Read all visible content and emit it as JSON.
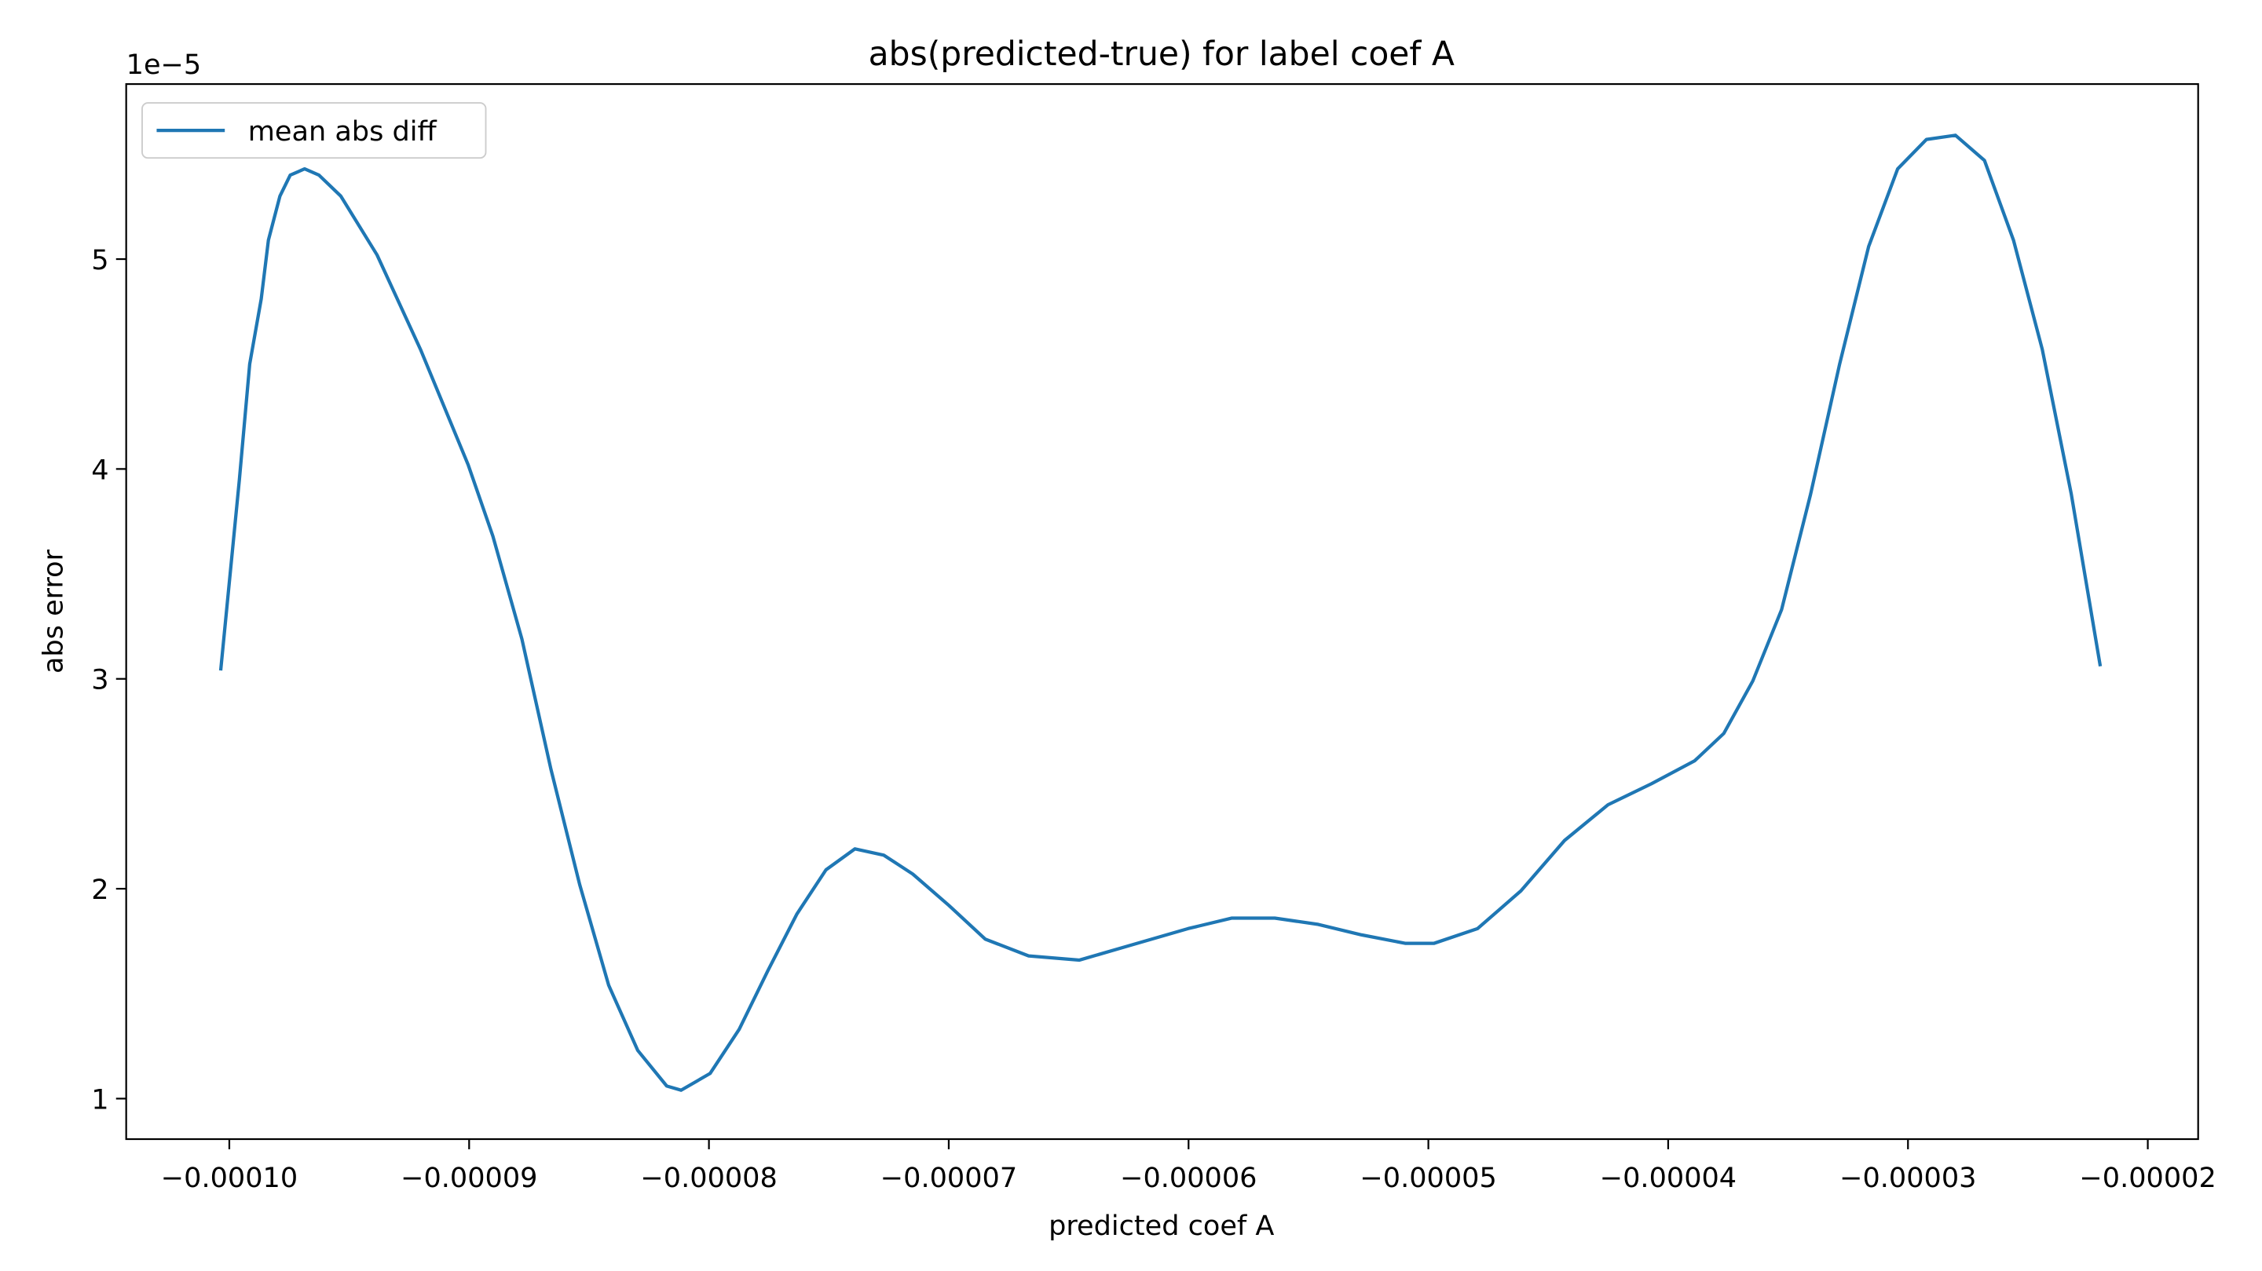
{
  "chart_data": {
    "type": "line",
    "title": "abs(predicted-true) for label coef A",
    "x_label": "predicted coef A",
    "y_label": "abs error",
    "y_offset_label": "1e−5",
    "legend_position": "upper left",
    "xlim": [
      -0.0001043,
      -1.79e-05
    ],
    "ylim": [
      0.807,
      5.834
    ],
    "xticks": [
      {
        "value": -0.0001,
        "label": "−0.00010"
      },
      {
        "value": -9e-05,
        "label": "−0.00009"
      },
      {
        "value": -8e-05,
        "label": "−0.00008"
      },
      {
        "value": -7e-05,
        "label": "−0.00007"
      },
      {
        "value": -6e-05,
        "label": "−0.00006"
      },
      {
        "value": -5e-05,
        "label": "−0.00005"
      },
      {
        "value": -4e-05,
        "label": "−0.00004"
      },
      {
        "value": -3e-05,
        "label": "−0.00003"
      },
      {
        "value": -2e-05,
        "label": "−0.00002"
      }
    ],
    "yticks": [
      1,
      2,
      3,
      4,
      5
    ],
    "x": [
      -0.00010036,
      -9.958e-05,
      -9.915e-05,
      -9.867e-05,
      -9.837e-05,
      -9.789e-05,
      -9.746e-05,
      -9.686e-05,
      -9.626e-05,
      -9.535e-05,
      -9.384e-05,
      -9.203e-05,
      -9.004e-05,
      -8.901e-05,
      -8.78e-05,
      -8.659e-05,
      -8.539e-05,
      -8.418e-05,
      -8.297e-05,
      -8.176e-05,
      -8.116e-05,
      -7.995e-05,
      -7.874e-05,
      -7.754e-05,
      -7.633e-05,
      -7.512e-05,
      -7.391e-05,
      -7.271e-05,
      -7.15e-05,
      -6.999e-05,
      -6.848e-05,
      -6.667e-05,
      -6.455e-05,
      -6.244e-05,
      -6.002e-05,
      -5.821e-05,
      -5.64e-05,
      -5.459e-05,
      -5.278e-05,
      -5.097e-05,
      -4.976e-05,
      -4.795e-05,
      -4.614e-05,
      -4.432e-05,
      -4.251e-05,
      -4.07e-05,
      -3.889e-05,
      -3.768e-05,
      -3.647e-05,
      -3.527e-05,
      -3.406e-05,
      -3.285e-05,
      -3.164e-05,
      -3.043e-05,
      -2.923e-05,
      -2.802e-05,
      -2.681e-05,
      -2.56e-05,
      -2.44e-05,
      -2.319e-05,
      -2.198e-05
    ],
    "series": [
      {
        "name": "mean abs diff",
        "color": "#1f77b4",
        "values": [
          3.04,
          3.95,
          4.5,
          4.81,
          5.09,
          5.3,
          5.4,
          5.43,
          5.4,
          5.3,
          5.02,
          4.57,
          4.02,
          3.68,
          3.19,
          2.57,
          2.02,
          1.54,
          1.23,
          1.06,
          1.04,
          1.12,
          1.33,
          1.61,
          1.88,
          2.09,
          2.19,
          2.16,
          2.07,
          1.92,
          1.76,
          1.68,
          1.66,
          1.73,
          1.81,
          1.86,
          1.86,
          1.83,
          1.78,
          1.74,
          1.74,
          1.81,
          1.99,
          2.23,
          2.4,
          2.5,
          2.61,
          2.74,
          2.99,
          3.33,
          3.88,
          4.5,
          5.06,
          5.43,
          5.57,
          5.59,
          5.47,
          5.09,
          4.57,
          3.88,
          3.06
        ]
      }
    ]
  }
}
